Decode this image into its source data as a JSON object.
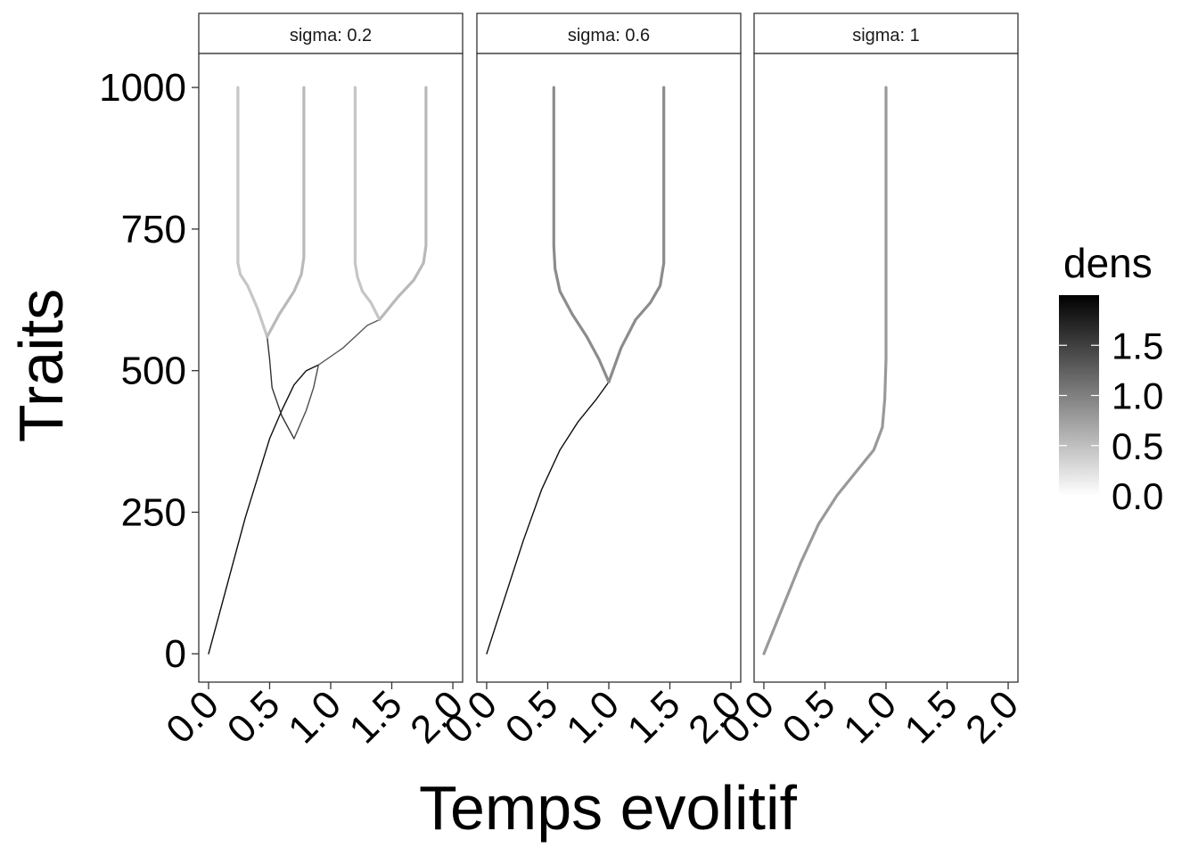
{
  "chart_data": {
    "type": "heatmap",
    "facet_variable": "sigma",
    "xlabel": "Temps evolitif",
    "ylabel": "Traits",
    "xlim": [
      -0.08,
      2.08
    ],
    "ylim": [
      -50,
      1060
    ],
    "x_ticks": [
      0.0,
      0.5,
      1.0,
      1.5,
      2.0
    ],
    "x_tick_labels": [
      "0.0",
      "0.5",
      "1.0",
      "1.5",
      "2.0"
    ],
    "y_ticks": [
      0,
      250,
      500,
      750,
      1000
    ],
    "y_tick_labels": [
      "0",
      "250",
      "500",
      "750",
      "1000"
    ],
    "legend": {
      "title": "dens",
      "range": [
        0,
        2.0
      ],
      "breaks": [
        0.0,
        0.5,
        1.0,
        1.5
      ],
      "labels": [
        "0.0",
        "0.5",
        "1.0",
        "1.5"
      ],
      "low_color": "#ffffff",
      "high_color": "#000000",
      "placement": "right"
    },
    "panels": [
      {
        "strip": "sigma: 0.2",
        "branches": [
          {
            "points": [
              [
                0.0,
                0
              ],
              [
                0.1,
                80
              ],
              [
                0.2,
                160
              ],
              [
                0.3,
                240
              ],
              [
                0.4,
                310
              ],
              [
                0.5,
                380
              ],
              [
                0.6,
                430
              ],
              [
                0.7,
                475
              ],
              [
                0.8,
                500
              ],
              [
                0.9,
                510
              ]
            ],
            "density": 1.9
          },
          {
            "points": [
              [
                0.9,
                510
              ],
              [
                0.86,
                470
              ],
              [
                0.8,
                430
              ],
              [
                0.74,
                400
              ],
              [
                0.7,
                380
              ]
            ],
            "density": 1.4
          },
          {
            "points": [
              [
                0.7,
                380
              ],
              [
                0.6,
                420
              ],
              [
                0.52,
                470
              ],
              [
                0.5,
                520
              ],
              [
                0.48,
                560
              ]
            ],
            "density": 1.6
          },
          {
            "points": [
              [
                0.48,
                560
              ],
              [
                0.4,
                610
              ],
              [
                0.32,
                650
              ],
              [
                0.26,
                670
              ],
              [
                0.24,
                690
              ],
              [
                0.24,
                1000
              ]
            ],
            "density": 0.45
          },
          {
            "points": [
              [
                0.48,
                560
              ],
              [
                0.58,
                600
              ],
              [
                0.7,
                640
              ],
              [
                0.76,
                670
              ],
              [
                0.78,
                700
              ],
              [
                0.78,
                1000
              ]
            ],
            "density": 0.55
          },
          {
            "points": [
              [
                0.9,
                510
              ],
              [
                1.1,
                540
              ],
              [
                1.3,
                580
              ],
              [
                1.4,
                590
              ]
            ],
            "density": 1.3
          },
          {
            "points": [
              [
                1.4,
                590
              ],
              [
                1.33,
                620
              ],
              [
                1.26,
                640
              ],
              [
                1.22,
                665
              ],
              [
                1.2,
                690
              ],
              [
                1.2,
                1000
              ]
            ],
            "density": 0.45
          },
          {
            "points": [
              [
                1.4,
                590
              ],
              [
                1.55,
                630
              ],
              [
                1.68,
                660
              ],
              [
                1.76,
                690
              ],
              [
                1.78,
                720
              ],
              [
                1.78,
                1000
              ]
            ],
            "density": 0.55
          }
        ]
      },
      {
        "strip": "sigma: 0.6",
        "branches": [
          {
            "points": [
              [
                0.0,
                0
              ],
              [
                0.15,
                100
              ],
              [
                0.3,
                200
              ],
              [
                0.45,
                290
              ],
              [
                0.6,
                360
              ],
              [
                0.75,
                410
              ],
              [
                0.9,
                450
              ],
              [
                1.0,
                480
              ]
            ],
            "density": 1.9
          },
          {
            "points": [
              [
                1.0,
                480
              ],
              [
                0.92,
                520
              ],
              [
                0.82,
                560
              ],
              [
                0.7,
                600
              ],
              [
                0.6,
                640
              ],
              [
                0.56,
                680
              ],
              [
                0.55,
                720
              ],
              [
                0.55,
                1000
              ]
            ],
            "density": 0.9
          },
          {
            "points": [
              [
                1.0,
                480
              ],
              [
                1.1,
                540
              ],
              [
                1.22,
                590
              ],
              [
                1.34,
                620
              ],
              [
                1.42,
                650
              ],
              [
                1.45,
                690
              ],
              [
                1.45,
                1000
              ]
            ],
            "density": 0.9
          }
        ]
      },
      {
        "strip": "sigma: 1",
        "branches": [
          {
            "points": [
              [
                0.0,
                0
              ],
              [
                0.15,
                80
              ],
              [
                0.3,
                160
              ],
              [
                0.45,
                230
              ],
              [
                0.6,
                280
              ],
              [
                0.75,
                320
              ],
              [
                0.9,
                360
              ],
              [
                0.97,
                400
              ],
              [
                0.99,
                450
              ],
              [
                1.0,
                520
              ],
              [
                1.0,
                1000
              ]
            ],
            "density": 0.8
          }
        ]
      }
    ]
  }
}
